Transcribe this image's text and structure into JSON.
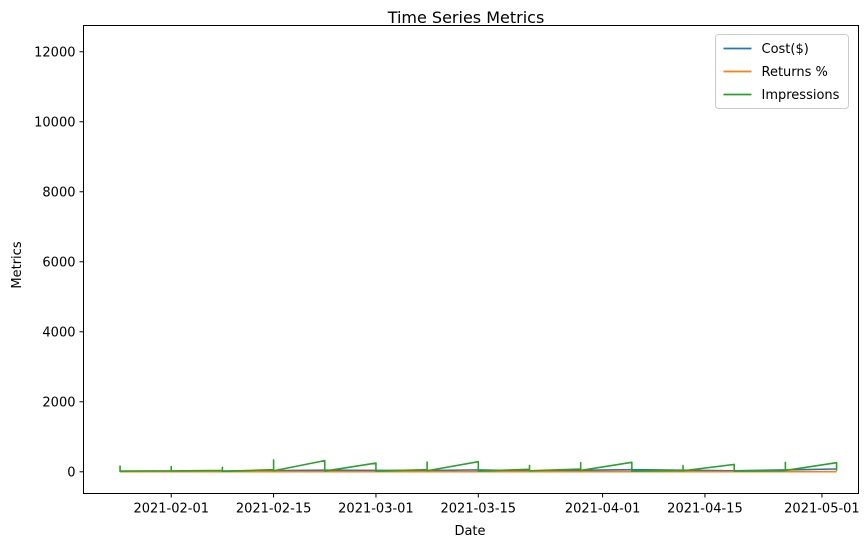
{
  "chart_data": {
    "type": "line",
    "title": "Time Series Metrics",
    "xlabel": "Date",
    "ylabel": "Metrics",
    "xlim": [
      "2021-01-20",
      "2021-05-06"
    ],
    "ylim": [
      -620,
      12750
    ],
    "x_ticks": [
      "2021-02-01",
      "2021-02-15",
      "2021-03-01",
      "2021-03-15",
      "2021-04-01",
      "2021-04-15",
      "2021-05-01"
    ],
    "y_ticks": [
      0,
      2000,
      4000,
      6000,
      8000,
      10000,
      12000
    ],
    "grid": false,
    "legend_position": "top-right",
    "series": [
      {
        "name": "Cost($)",
        "color": "#1f77b4",
        "x": [
          "2021-01-25",
          "2021-02-08",
          "2021-02-22",
          "2021-03-08",
          "2021-03-15",
          "2021-03-22",
          "2021-04-05",
          "2021-04-19",
          "2021-05-03"
        ],
        "y": [
          5,
          20,
          45,
          35,
          55,
          25,
          60,
          30,
          80
        ]
      },
      {
        "name": "Returns %",
        "color": "#ff7f0e",
        "x": [
          "2021-01-25",
          "2021-02-22",
          "2021-03-22",
          "2021-04-19",
          "2021-05-03"
        ],
        "y": [
          2,
          3,
          2,
          3,
          2
        ]
      },
      {
        "name": "Impressions",
        "color": "#2ca02c",
        "x": [
          "2021-01-25",
          "2021-01-25",
          "2021-01-25",
          "2021-02-01",
          "2021-02-01",
          "2021-02-01",
          "2021-02-08",
          "2021-02-08",
          "2021-02-08",
          "2021-02-15",
          "2021-02-15",
          "2021-02-15",
          "2021-02-22",
          "2021-02-22",
          "2021-03-01",
          "2021-03-01",
          "2021-03-08",
          "2021-03-08",
          "2021-03-08",
          "2021-03-15",
          "2021-03-15",
          "2021-03-22",
          "2021-03-22",
          "2021-03-22",
          "2021-03-29",
          "2021-03-29",
          "2021-03-29",
          "2021-04-05",
          "2021-04-05",
          "2021-04-12",
          "2021-04-12",
          "2021-04-12",
          "2021-04-19",
          "2021-04-19",
          "2021-04-26",
          "2021-04-26",
          "2021-04-26",
          "2021-05-03",
          "2021-05-03"
        ],
        "y": [
          180,
          10,
          20,
          30,
          150,
          25,
          40,
          130,
          15,
          60,
          340,
          30,
          320,
          20,
          250,
          20,
          60,
          280,
          30,
          290,
          20,
          70,
          180,
          30,
          80,
          260,
          40,
          270,
          20,
          40,
          180,
          30,
          210,
          20,
          30,
          270,
          40,
          260,
          30
        ]
      }
    ]
  }
}
